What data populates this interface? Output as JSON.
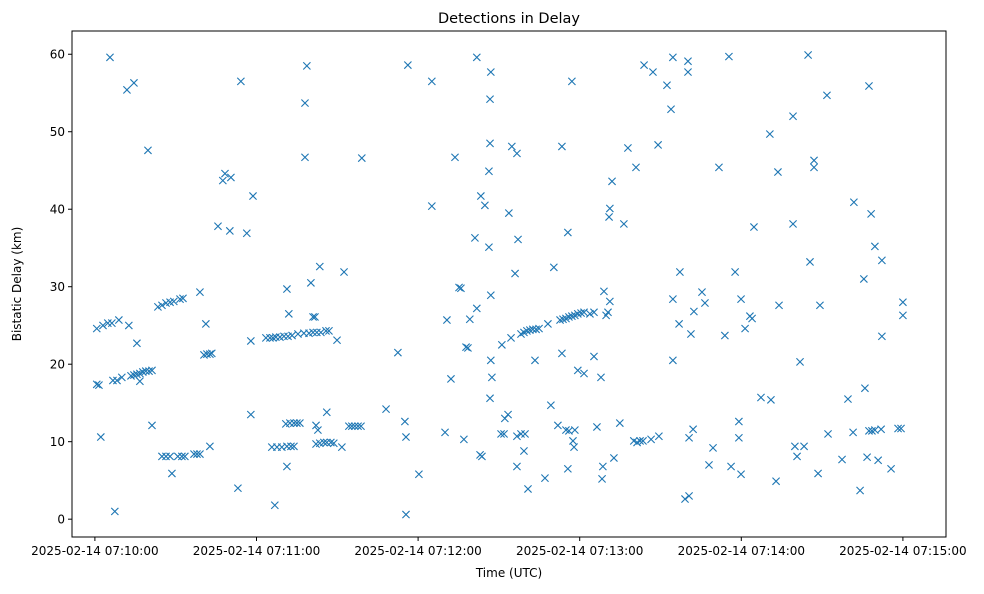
{
  "chart_data": {
    "type": "scatter",
    "title": "Detections in Delay",
    "xlabel": "Time (UTC)",
    "ylabel": "Bistatic Delay (km)",
    "x_units": "seconds after 2025-02-14 07:10:00",
    "xlim": [
      -8.5,
      316
    ],
    "ylim": [
      -2.3,
      63
    ],
    "grid": false,
    "marker": "x",
    "color": "#1f77b4",
    "x_ticks": [
      {
        "value": 0,
        "label": "2025-02-14 07:10:00"
      },
      {
        "value": 60,
        "label": "2025-02-14 07:11:00"
      },
      {
        "value": 120,
        "label": "2025-02-14 07:12:00"
      },
      {
        "value": 180,
        "label": "2025-02-14 07:13:00"
      },
      {
        "value": 240,
        "label": "2025-02-14 07:14:00"
      },
      {
        "value": 300,
        "label": "2025-02-14 07:15:00"
      }
    ],
    "y_ticks": [
      {
        "value": 0,
        "label": "0"
      },
      {
        "value": 10,
        "label": "10"
      },
      {
        "value": 20,
        "label": "20"
      },
      {
        "value": 30,
        "label": "30"
      },
      {
        "value": 40,
        "label": "40"
      },
      {
        "value": 50,
        "label": "50"
      },
      {
        "value": 60,
        "label": "60"
      }
    ],
    "points": [
      [
        0.7,
        24.6
      ],
      [
        3.0,
        25.0
      ],
      [
        4.8,
        25.3
      ],
      [
        6.3,
        25.3
      ],
      [
        8.9,
        25.7
      ],
      [
        12.6,
        25.0
      ],
      [
        0.7,
        17.4
      ],
      [
        1.5,
        17.3
      ],
      [
        2.2,
        10.6
      ],
      [
        5.6,
        59.6
      ],
      [
        7.4,
        1.0
      ],
      [
        6.7,
        17.9
      ],
      [
        8.2,
        17.9
      ],
      [
        10.0,
        18.3
      ],
      [
        11.9,
        55.4
      ],
      [
        14.5,
        56.3
      ],
      [
        15.6,
        22.7
      ],
      [
        13.4,
        18.5
      ],
      [
        14.5,
        18.6
      ],
      [
        15.6,
        18.7
      ],
      [
        16.7,
        18.8
      ],
      [
        17.8,
        19.0
      ],
      [
        18.9,
        19.1
      ],
      [
        20.1,
        19.1
      ],
      [
        21.2,
        19.2
      ],
      [
        16.7,
        17.8
      ],
      [
        19.7,
        47.6
      ],
      [
        21.2,
        12.1
      ],
      [
        23.4,
        27.4
      ],
      [
        24.9,
        27.6
      ],
      [
        26.4,
        27.9
      ],
      [
        27.9,
        28.0
      ],
      [
        29.3,
        28.1
      ],
      [
        31.6,
        28.4
      ],
      [
        32.7,
        28.5
      ],
      [
        24.9,
        8.1
      ],
      [
        26.4,
        8.1
      ],
      [
        27.9,
        8.1
      ],
      [
        28.6,
        5.9
      ],
      [
        30.8,
        8.1
      ],
      [
        32.3,
        8.1
      ],
      [
        33.4,
        8.1
      ],
      [
        36.8,
        8.4
      ],
      [
        37.9,
        8.4
      ],
      [
        39.0,
        8.4
      ],
      [
        39.0,
        29.3
      ],
      [
        41.2,
        25.2
      ],
      [
        40.5,
        21.2
      ],
      [
        41.6,
        21.3
      ],
      [
        42.7,
        21.3
      ],
      [
        43.4,
        21.4
      ],
      [
        42.7,
        9.4
      ],
      [
        45.7,
        37.8
      ],
      [
        47.5,
        43.7
      ],
      [
        48.3,
        44.6
      ],
      [
        50.5,
        44.1
      ],
      [
        50.1,
        37.2
      ],
      [
        53.1,
        4.0
      ],
      [
        54.2,
        56.5
      ],
      [
        56.4,
        36.9
      ],
      [
        57.9,
        23.0
      ],
      [
        57.9,
        13.5
      ],
      [
        58.7,
        41.7
      ],
      [
        63.5,
        23.4
      ],
      [
        65.0,
        23.4
      ],
      [
        66.1,
        23.4
      ],
      [
        67.2,
        23.5
      ],
      [
        68.7,
        23.5
      ],
      [
        70.2,
        23.6
      ],
      [
        71.7,
        23.6
      ],
      [
        73.2,
        23.7
      ],
      [
        75.4,
        23.9
      ],
      [
        77.6,
        24.0
      ],
      [
        79.5,
        24.0
      ],
      [
        81.0,
        24.1
      ],
      [
        82.4,
        24.1
      ],
      [
        83.9,
        24.1
      ],
      [
        85.8,
        24.3
      ],
      [
        86.9,
        24.3
      ],
      [
        66.8,
        1.8
      ],
      [
        65.7,
        9.3
      ],
      [
        67.6,
        9.3
      ],
      [
        69.4,
        9.3
      ],
      [
        71.3,
        9.4
      ],
      [
        72.8,
        9.4
      ],
      [
        73.9,
        9.4
      ],
      [
        70.9,
        12.3
      ],
      [
        72.4,
        12.4
      ],
      [
        73.9,
        12.4
      ],
      [
        75.0,
        12.4
      ],
      [
        76.1,
        12.4
      ],
      [
        71.3,
        6.8
      ],
      [
        71.3,
        29.7
      ],
      [
        72.0,
        26.5
      ],
      [
        78.0,
        53.7
      ],
      [
        78.0,
        46.7
      ],
      [
        78.7,
        58.5
      ],
      [
        80.2,
        30.5
      ],
      [
        81.0,
        26.1
      ],
      [
        81.7,
        26.1
      ],
      [
        82.1,
        12.1
      ],
      [
        83.5,
        32.6
      ],
      [
        82.8,
        11.5
      ],
      [
        82.1,
        9.7
      ],
      [
        83.5,
        9.8
      ],
      [
        85.0,
        9.9
      ],
      [
        86.1,
        9.9
      ],
      [
        87.6,
        9.9
      ],
      [
        88.7,
        9.8
      ],
      [
        86.1,
        13.8
      ],
      [
        89.9,
        23.1
      ],
      [
        91.7,
        9.3
      ],
      [
        92.5,
        31.9
      ],
      [
        94.3,
        12.0
      ],
      [
        95.4,
        12.0
      ],
      [
        96.5,
        12.0
      ],
      [
        97.7,
        12.0
      ],
      [
        98.8,
        12.0
      ],
      [
        99.1,
        46.6
      ],
      [
        108.1,
        14.2
      ],
      [
        112.5,
        21.5
      ],
      [
        115.1,
        12.6
      ],
      [
        115.5,
        10.6
      ],
      [
        115.5,
        0.6
      ],
      [
        116.2,
        58.6
      ],
      [
        120.3,
        5.8
      ],
      [
        125.1,
        40.4
      ],
      [
        125.1,
        56.5
      ],
      [
        130.0,
        11.2
      ],
      [
        130.7,
        25.7
      ],
      [
        132.2,
        18.1
      ],
      [
        133.7,
        46.7
      ],
      [
        135.2,
        29.9
      ],
      [
        135.9,
        29.8
      ],
      [
        137.0,
        10.3
      ],
      [
        137.8,
        22.2
      ],
      [
        138.5,
        22.1
      ],
      [
        139.2,
        25.8
      ],
      [
        141.1,
        36.3
      ],
      [
        141.8,
        59.6
      ],
      [
        141.8,
        27.2
      ],
      [
        143.3,
        41.7
      ],
      [
        144.8,
        40.5
      ],
      [
        143.0,
        8.3
      ],
      [
        143.7,
        8.1
      ],
      [
        146.3,
        44.9
      ],
      [
        146.3,
        35.1
      ],
      [
        146.7,
        48.5
      ],
      [
        146.7,
        54.2
      ],
      [
        147.0,
        57.7
      ],
      [
        147.0,
        28.9
      ],
      [
        147.0,
        20.5
      ],
      [
        147.4,
        18.3
      ],
      [
        146.7,
        15.6
      ],
      [
        150.8,
        11.0
      ],
      [
        151.9,
        11.0
      ],
      [
        151.1,
        22.5
      ],
      [
        152.2,
        13.0
      ],
      [
        153.4,
        13.5
      ],
      [
        153.7,
        39.5
      ],
      [
        154.5,
        23.4
      ],
      [
        154.8,
        48.1
      ],
      [
        156.7,
        47.2
      ],
      [
        156.0,
        31.7
      ],
      [
        156.7,
        10.7
      ],
      [
        158.2,
        11.0
      ],
      [
        159.7,
        11.0
      ],
      [
        156.7,
        6.8
      ],
      [
        157.1,
        36.1
      ],
      [
        158.2,
        23.9
      ],
      [
        159.3,
        24.1
      ],
      [
        160.4,
        24.3
      ],
      [
        161.5,
        24.4
      ],
      [
        162.6,
        24.5
      ],
      [
        163.8,
        24.5
      ],
      [
        164.9,
        24.6
      ],
      [
        159.3,
        8.8
      ],
      [
        160.8,
        3.9
      ],
      [
        163.4,
        20.5
      ],
      [
        167.1,
        5.3
      ],
      [
        168.2,
        25.2
      ],
      [
        169.3,
        14.7
      ],
      [
        170.4,
        32.5
      ],
      [
        171.9,
        12.1
      ],
      [
        172.7,
        25.7
      ],
      [
        173.8,
        25.8
      ],
      [
        174.9,
        25.9
      ],
      [
        176.0,
        26.1
      ],
      [
        177.1,
        26.2
      ],
      [
        178.2,
        26.3
      ],
      [
        179.3,
        26.5
      ],
      [
        180.5,
        26.6
      ],
      [
        181.6,
        26.7
      ],
      [
        173.4,
        48.1
      ],
      [
        173.4,
        21.4
      ],
      [
        174.9,
        11.5
      ],
      [
        176.0,
        11.4
      ],
      [
        175.6,
        6.5
      ],
      [
        175.6,
        37.0
      ],
      [
        177.1,
        56.5
      ],
      [
        177.5,
        10.1
      ],
      [
        177.9,
        9.3
      ],
      [
        178.2,
        11.5
      ],
      [
        179.3,
        19.2
      ],
      [
        181.6,
        18.8
      ],
      [
        183.8,
        26.5
      ],
      [
        185.3,
        26.7
      ],
      [
        185.3,
        21.0
      ],
      [
        186.4,
        11.9
      ],
      [
        187.9,
        18.3
      ],
      [
        188.3,
        5.2
      ],
      [
        188.6,
        6.8
      ],
      [
        189.0,
        29.4
      ],
      [
        189.8,
        26.3
      ],
      [
        190.5,
        26.7
      ],
      [
        190.9,
        39.0
      ],
      [
        191.2,
        40.1
      ],
      [
        191.2,
        28.1
      ],
      [
        192.0,
        43.6
      ],
      [
        192.7,
        7.9
      ],
      [
        194.9,
        12.4
      ],
      [
        196.4,
        38.1
      ],
      [
        197.9,
        47.9
      ],
      [
        200.1,
        10.1
      ],
      [
        201.3,
        9.9
      ],
      [
        202.4,
        10.1
      ],
      [
        203.5,
        10.1
      ],
      [
        200.9,
        45.4
      ],
      [
        203.9,
        58.6
      ],
      [
        206.5,
        10.3
      ],
      [
        207.2,
        57.7
      ],
      [
        209.1,
        48.3
      ],
      [
        209.4,
        10.7
      ],
      [
        212.4,
        56.0
      ],
      [
        213.9,
        52.9
      ],
      [
        214.6,
        28.4
      ],
      [
        214.6,
        20.5
      ],
      [
        214.6,
        59.6
      ],
      [
        217.2,
        31.9
      ],
      [
        216.9,
        25.2
      ],
      [
        219.1,
        2.6
      ],
      [
        220.6,
        3.0
      ],
      [
        220.2,
        59.1
      ],
      [
        220.2,
        57.7
      ],
      [
        220.6,
        10.5
      ],
      [
        221.3,
        23.9
      ],
      [
        222.1,
        11.6
      ],
      [
        222.4,
        26.8
      ],
      [
        225.4,
        29.3
      ],
      [
        226.5,
        27.9
      ],
      [
        228.0,
        7.0
      ],
      [
        229.5,
        9.2
      ],
      [
        231.7,
        45.4
      ],
      [
        233.9,
        23.7
      ],
      [
        235.4,
        59.7
      ],
      [
        236.2,
        6.8
      ],
      [
        237.7,
        31.9
      ],
      [
        239.9,
        28.4
      ],
      [
        239.1,
        12.6
      ],
      [
        239.1,
        10.5
      ],
      [
        239.9,
        5.8
      ],
      [
        241.4,
        24.6
      ],
      [
        243.2,
        26.2
      ],
      [
        244.0,
        25.9
      ],
      [
        244.7,
        37.7
      ],
      [
        247.3,
        15.7
      ],
      [
        250.6,
        49.7
      ],
      [
        251.0,
        15.4
      ],
      [
        252.9,
        4.9
      ],
      [
        253.6,
        44.8
      ],
      [
        254.0,
        27.6
      ],
      [
        259.2,
        52.0
      ],
      [
        259.2,
        38.1
      ],
      [
        259.9,
        9.4
      ],
      [
        260.7,
        8.1
      ],
      [
        261.8,
        20.3
      ],
      [
        263.3,
        9.4
      ],
      [
        264.8,
        59.9
      ],
      [
        265.5,
        33.2
      ],
      [
        267.0,
        46.3
      ],
      [
        267.0,
        45.4
      ],
      [
        268.5,
        5.9
      ],
      [
        269.2,
        27.6
      ],
      [
        271.8,
        54.7
      ],
      [
        272.2,
        11.0
      ],
      [
        277.4,
        7.7
      ],
      [
        279.6,
        15.5
      ],
      [
        281.8,
        40.9
      ],
      [
        281.5,
        11.2
      ],
      [
        284.1,
        3.7
      ],
      [
        285.5,
        31.0
      ],
      [
        285.9,
        16.9
      ],
      [
        286.7,
        8.0
      ],
      [
        287.4,
        55.9
      ],
      [
        288.2,
        39.4
      ],
      [
        287.4,
        11.4
      ],
      [
        288.5,
        11.4
      ],
      [
        289.6,
        11.5
      ],
      [
        289.6,
        35.2
      ],
      [
        290.8,
        7.6
      ],
      [
        292.2,
        33.4
      ],
      [
        291.9,
        11.6
      ],
      [
        292.2,
        23.6
      ],
      [
        295.6,
        6.5
      ],
      [
        298.2,
        11.7
      ],
      [
        299.3,
        11.7
      ],
      [
        300.0,
        28.0
      ],
      [
        300.0,
        26.3
      ]
    ]
  }
}
